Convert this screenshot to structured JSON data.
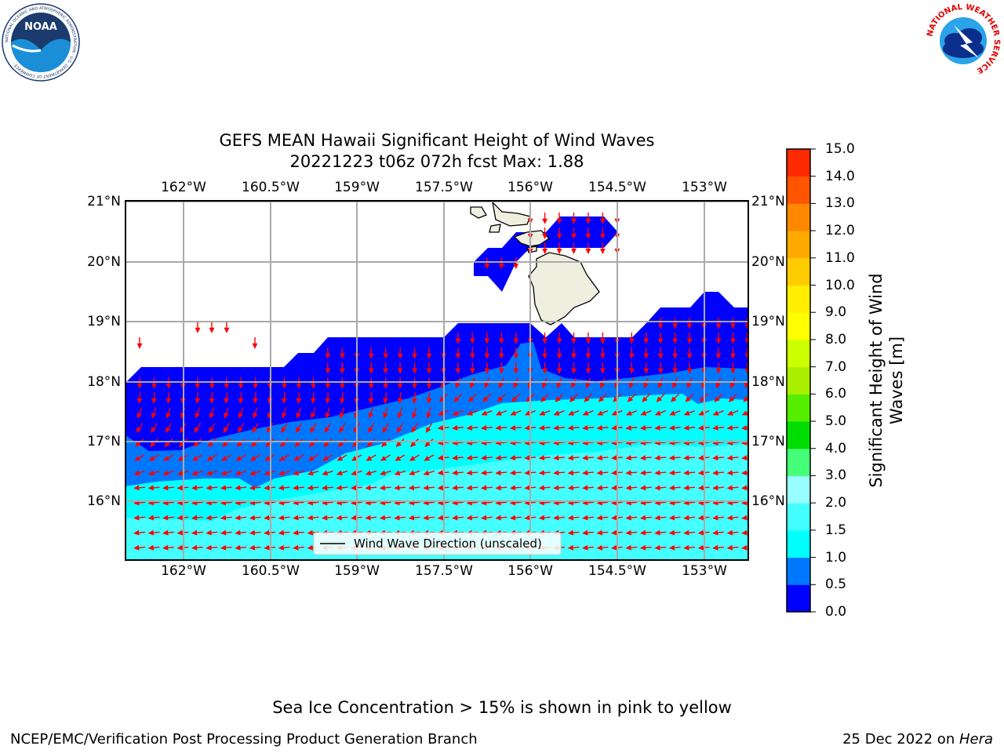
{
  "header": {
    "title_line1": "GEFS MEAN Hawaii Significant Height of Wind Waves",
    "title_line2": "20221223 t06z 072h fcst   Max: 1.88"
  },
  "logos": {
    "noaa_text": "NOAA",
    "noaa_ring": "NATIONAL OCEANIC AND ATMOSPHERIC ADMINISTRATION · U.S. DEPARTMENT OF COMMERCE ·",
    "nws_ring": "NATIONAL WEATHER SERVICE"
  },
  "map": {
    "lon_labels": [
      "162°W",
      "160.5°W",
      "159°W",
      "157.5°W",
      "156°W",
      "154.5°W",
      "153°W"
    ],
    "lat_labels": [
      "21°N",
      "20°N",
      "19°N",
      "18°N",
      "17°N",
      "16°N"
    ],
    "legend_label": "Wind Wave Direction (unscaled)",
    "colors": {
      "0.0-0.5": "#0000ff",
      "0.5-1.0": "#0077ff",
      "1.0-1.5": "#00ffff",
      "1.5-2.0": "#44ffff",
      "land": "#efefdf",
      "arrow": "#ff0000"
    }
  },
  "colorbar": {
    "label": "Significant Height of Wind Waves [m]",
    "ticks": [
      "0.0",
      "0.5",
      "1.0",
      "1.5",
      "2.0",
      "3.0",
      "4.0",
      "5.0",
      "6.0",
      "7.0",
      "8.0",
      "9.0",
      "10.0",
      "11.0",
      "12.0",
      "13.0",
      "14.0",
      "15.0"
    ],
    "colors": [
      "#0000ff",
      "#0077ff",
      "#00ffff",
      "#44ffff",
      "#99ffff",
      "#44ff77",
      "#00dd00",
      "#55ee00",
      "#aaee00",
      "#ccff00",
      "#ffff00",
      "#ffee00",
      "#ffcc00",
      "#ffaa00",
      "#ff8800",
      "#ff5500",
      "#ff2a00",
      "#ff0000"
    ]
  },
  "footer": {
    "sea_ice_note": "Sea Ice Concentration > 15% is shown in pink to yellow",
    "branch": "NCEP/EMC/Verification Post Processing Product Generation Branch",
    "date": "25 Dec 2022 on ",
    "machine": "Hera"
  }
}
